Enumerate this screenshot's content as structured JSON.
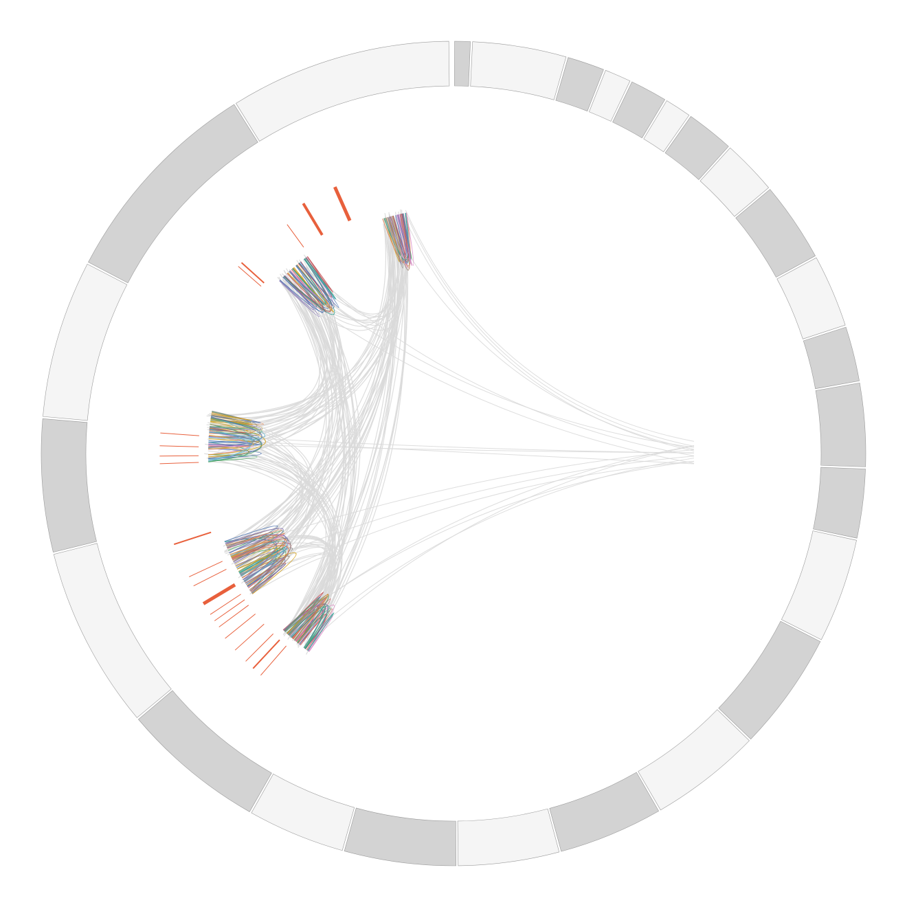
{
  "chart_data": {
    "type": "chord",
    "title": "",
    "legend": "none",
    "grid": false,
    "ring": {
      "segment_colors": [
        "#f5f5f5",
        "#d3d3d3"
      ],
      "stroke": "#999999",
      "segments": [
        {
          "start": 0.0,
          "end": 2.5,
          "fill": "#d3d3d3"
        },
        {
          "start": 2.5,
          "end": 16.0,
          "fill": "#f5f5f5"
        },
        {
          "start": 16.0,
          "end": 21.5,
          "fill": "#d3d3d3"
        },
        {
          "start": 21.5,
          "end": 25.5,
          "fill": "#f5f5f5"
        },
        {
          "start": 25.5,
          "end": 31.0,
          "fill": "#d3d3d3"
        },
        {
          "start": 31.0,
          "end": 35.0,
          "fill": "#f5f5f5"
        },
        {
          "start": 35.0,
          "end": 42.0,
          "fill": "#d3d3d3"
        },
        {
          "start": 42.0,
          "end": 50.0,
          "fill": "#f5f5f5"
        },
        {
          "start": 50.0,
          "end": 61.5,
          "fill": "#d3d3d3"
        },
        {
          "start": 61.5,
          "end": 72.0,
          "fill": "#f5f5f5"
        },
        {
          "start": 72.0,
          "end": 80.0,
          "fill": "#d3d3d3"
        },
        {
          "start": 80.0,
          "end": 92.0,
          "fill": "#d3d3d3"
        },
        {
          "start": 92.0,
          "end": 102.0,
          "fill": "#d3d3d3"
        },
        {
          "start": 102.0,
          "end": 117.0,
          "fill": "#f5f5f5"
        },
        {
          "start": 117.0,
          "end": 134.0,
          "fill": "#d3d3d3"
        },
        {
          "start": 134.0,
          "end": 150.0,
          "fill": "#f5f5f5"
        },
        {
          "start": 150.0,
          "end": 165.0,
          "fill": "#d3d3d3"
        },
        {
          "start": 165.0,
          "end": 179.5,
          "fill": "#f5f5f5"
        },
        {
          "start": 179.5,
          "end": 195.5,
          "fill": "#d3d3d3"
        },
        {
          "start": 195.5,
          "end": 209.5,
          "fill": "#f5f5f5"
        },
        {
          "start": 209.5,
          "end": 230.0,
          "fill": "#d3d3d3"
        },
        {
          "start": 230.0,
          "end": 256.0,
          "fill": "#f5f5f5"
        },
        {
          "start": 256.0,
          "end": 275.0,
          "fill": "#d3d3d3"
        },
        {
          "start": 275.0,
          "end": 297.5,
          "fill": "#f5f5f5"
        },
        {
          "start": 297.5,
          "end": 328.0,
          "fill": "#d3d3d3"
        },
        {
          "start": 328.0,
          "end": 359.5,
          "fill": "#f5f5f5"
        }
      ]
    },
    "clusters": [
      {
        "id": "A",
        "angle": -14,
        "spread": 6,
        "depth": 0.62,
        "lines": 22
      },
      {
        "id": "B",
        "angle": -41,
        "spread": 9,
        "depth": 0.58,
        "lines": 26
      },
      {
        "id": "C",
        "angle": -86,
        "spread": 12,
        "depth": 0.62,
        "lines": 40
      },
      {
        "id": "D",
        "angle": -118,
        "spread": 14,
        "depth": 0.6,
        "lines": 44
      },
      {
        "id": "E",
        "angle": -140,
        "spread": 8,
        "depth": 0.62,
        "lines": 30
      }
    ],
    "hub_angle": 90,
    "hub_depth": 0.66,
    "palette": [
      "#4c72b0",
      "#dd8452",
      "#55a868",
      "#c44e52",
      "#8172b3",
      "#937860",
      "#da8bc3",
      "#8c8c8c",
      "#ccb974",
      "#64b5cd",
      "#d4a017",
      "#2a9d8f"
    ],
    "highlight_color": "#e8603c",
    "link_color": "#d9d9d9",
    "bar_marks": [
      {
        "angle": -24.0,
        "length": 0.085,
        "width": 5
      },
      {
        "angle": -31.0,
        "length": 0.085,
        "width": 4
      },
      {
        "angle": -36.0,
        "length": 0.065,
        "width": 1
      },
      {
        "angle": -48.0,
        "length": 0.07,
        "width": 2
      },
      {
        "angle": -49.0,
        "length": 0.07,
        "width": 1
      },
      {
        "angle": -86.0,
        "length": 0.09,
        "width": 1
      },
      {
        "angle": -88.5,
        "length": 0.09,
        "width": 1
      },
      {
        "angle": -90.5,
        "length": 0.09,
        "width": 1
      },
      {
        "angle": -92.0,
        "length": 0.09,
        "width": 1
      },
      {
        "angle": -108.0,
        "length": 0.09,
        "width": 2
      },
      {
        "angle": -115.0,
        "length": 0.085,
        "width": 1
      },
      {
        "angle": -117.0,
        "length": 0.085,
        "width": 1
      },
      {
        "angle": -121.0,
        "length": 0.085,
        "width": 5
      },
      {
        "angle": -123.5,
        "length": 0.085,
        "width": 1
      },
      {
        "angle": -125.0,
        "length": 0.085,
        "width": 1
      },
      {
        "angle": -126.5,
        "length": 0.085,
        "width": 1
      },
      {
        "angle": -129.0,
        "length": 0.09,
        "width": 1
      },
      {
        "angle": -132.0,
        "length": 0.09,
        "width": 1
      },
      {
        "angle": -135.0,
        "length": 0.09,
        "width": 1
      },
      {
        "angle": -137.0,
        "length": 0.09,
        "width": 2
      },
      {
        "angle": -139.0,
        "length": 0.09,
        "width": 1
      }
    ]
  }
}
